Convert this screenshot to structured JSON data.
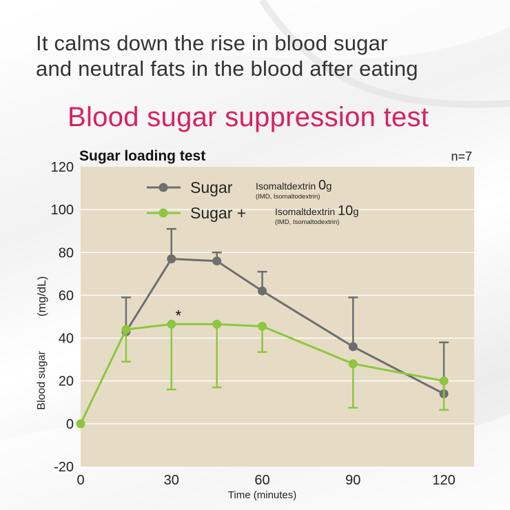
{
  "header": {
    "headline_line1": "It calms down the rise in blood sugar",
    "headline_line2": "and neutral fats in the blood after eating",
    "subtitle": "Blood sugar suppression test"
  },
  "colors": {
    "title_accent": "#d8205f",
    "plot_background": "#e6dcc5",
    "series_sugar": "#6e6e6e",
    "series_sugar_imd": "#8dc641"
  },
  "chart_data": {
    "type": "line",
    "title": "Sugar loading test",
    "sample_size_label": "n=7",
    "xlabel": "Time (minutes)",
    "ylabel": "Blood sugar",
    "ylabel_unit": "(mg/dL)",
    "xlim": [
      0,
      130
    ],
    "ylim": [
      -20,
      120
    ],
    "x_ticks": [
      0,
      30,
      60,
      90,
      120
    ],
    "y_ticks": [
      -20,
      0,
      20,
      40,
      60,
      80,
      100,
      120
    ],
    "grid": true,
    "legend_position": "top-left",
    "significance_marker": {
      "label": "*",
      "x": 30
    },
    "series": [
      {
        "legend_main": "Sugar",
        "legend_detail": "Isomaltdextrin",
        "legend_amount": "0",
        "legend_unit": "g",
        "legend_note": "(IMD, Isomaltodextrin)",
        "color": "#6e6e6e",
        "x": [
          15,
          30,
          45,
          60,
          90,
          120
        ],
        "y": [
          43,
          77,
          76,
          62,
          36,
          14
        ],
        "error_upper": [
          59,
          91,
          80,
          71,
          59,
          38
        ],
        "error_lower": [
          null,
          null,
          null,
          null,
          null,
          null
        ]
      },
      {
        "legend_main": "Sugar +",
        "legend_detail": "Isomaltdextrin",
        "legend_amount": "10",
        "legend_unit": "g",
        "legend_note": "(IMD, Isomaltodextrin)",
        "color": "#8dc641",
        "x": [
          0,
          15,
          30,
          45,
          60,
          90,
          120
        ],
        "y": [
          0,
          44,
          46.5,
          46.5,
          45.5,
          28,
          20
        ],
        "error_upper": [
          null,
          null,
          null,
          null,
          null,
          null,
          null
        ],
        "error_lower": [
          null,
          29,
          16,
          17,
          33.5,
          7.5,
          6.5
        ]
      }
    ]
  }
}
